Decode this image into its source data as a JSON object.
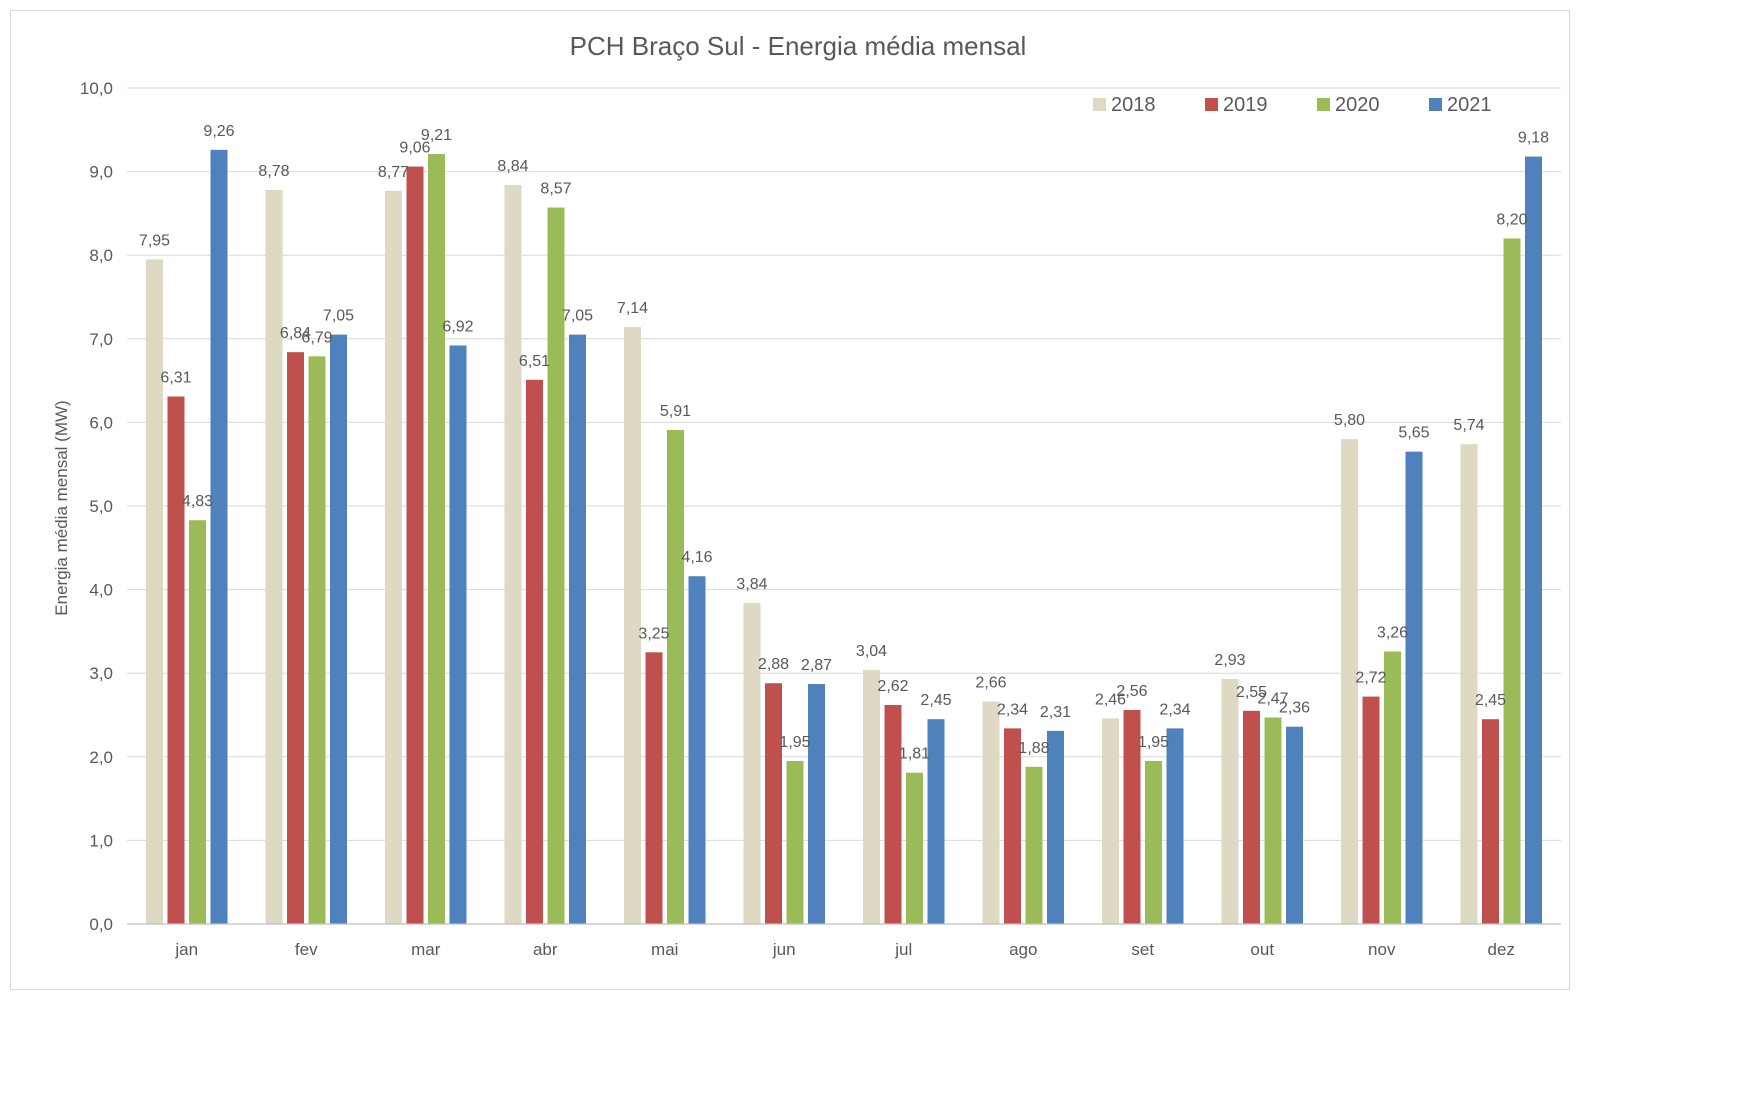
{
  "chart_data": {
    "type": "bar",
    "title": "PCH Braço Sul - Energia média mensal",
    "ylabel": "Energia média mensal (MW)",
    "xlabel": "",
    "ylim": [
      0,
      10
    ],
    "y_ticks": [
      "0,0",
      "1,0",
      "2,0",
      "3,0",
      "4,0",
      "5,0",
      "6,0",
      "7,0",
      "8,0",
      "9,0",
      "10,0"
    ],
    "grid": true,
    "legend_position": "top-right",
    "categories": [
      "jan",
      "fev",
      "mar",
      "abr",
      "mai",
      "jun",
      "jul",
      "ago",
      "set",
      "out",
      "nov",
      "dez"
    ],
    "series": [
      {
        "name": "2018",
        "color": "#ddd9c3",
        "values": [
          7.95,
          8.78,
          8.77,
          8.84,
          7.14,
          3.84,
          3.04,
          2.66,
          2.46,
          2.93,
          5.8,
          5.74
        ],
        "labels": [
          "7,95",
          "8,78",
          "8,77",
          "8,84",
          "7,14",
          "3,84",
          "3,04",
          "2,66",
          "2,46",
          "2,93",
          "5,80",
          "5,74"
        ]
      },
      {
        "name": "2019",
        "color": "#c0504d",
        "values": [
          6.31,
          6.84,
          9.06,
          6.51,
          3.25,
          2.88,
          2.62,
          2.34,
          2.56,
          2.55,
          2.72,
          2.45
        ],
        "labels": [
          "6,31",
          "6,84",
          "9,06",
          "6,51",
          "3,25",
          "2,88",
          "2,62",
          "2,34",
          "2,56",
          "2,55",
          "2,72",
          "2,45"
        ]
      },
      {
        "name": "2020",
        "color": "#9bbb59",
        "values": [
          4.83,
          6.79,
          9.21,
          8.57,
          5.91,
          1.95,
          1.81,
          1.88,
          1.95,
          2.47,
          3.26,
          8.2
        ],
        "labels": [
          "4,83",
          "6,79",
          "9,21",
          "8,57",
          "5,91",
          "1,95",
          "1,81",
          "1,88",
          "1,95",
          "2,47",
          "3,26",
          "8,20"
        ]
      },
      {
        "name": "2021",
        "color": "#4f81bd",
        "values": [
          9.26,
          7.05,
          6.92,
          7.05,
          4.16,
          2.87,
          2.45,
          2.31,
          2.34,
          2.36,
          5.65,
          9.18
        ],
        "labels": [
          "9,26",
          "7,05",
          "6,92",
          "7,05",
          "4,16",
          "2,87",
          "2,45",
          "2,31",
          "2,34",
          "2,36",
          "5,65",
          "9,18"
        ]
      }
    ]
  }
}
